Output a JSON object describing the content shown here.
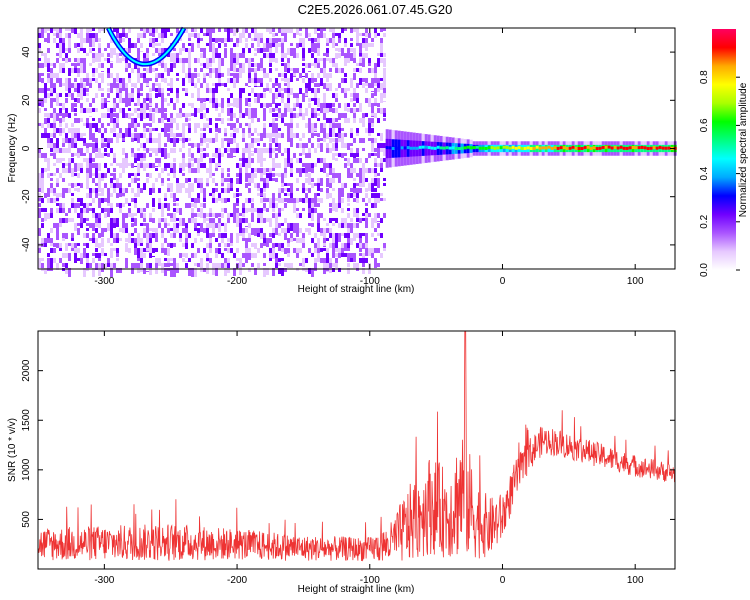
{
  "title": "C2E5.2026.061.07.45.G20",
  "chart_data": [
    {
      "type": "heatmap",
      "xlabel": "Height of straight line (km)",
      "ylabel": "Frequency (Hz)",
      "xlim": [
        -350,
        130
      ],
      "ylim": [
        -50,
        50
      ],
      "x_ticks": [
        -300,
        -200,
        -100,
        0,
        100
      ],
      "y_ticks": [
        -40,
        -20,
        0,
        20,
        40
      ],
      "colorbar": {
        "label": "Normalized spectral amplitude",
        "range": [
          0,
          1
        ],
        "ticks": [
          "0.0",
          "0.2",
          "0.4",
          "0.6",
          "0.8"
        ],
        "colors": [
          "#ffffff",
          "#e6c8ff",
          "#aa55ff",
          "#7000ff",
          "#0000ff",
          "#00aaff",
          "#00ffff",
          "#00ff80",
          "#00ff00",
          "#aaff00",
          "#ffff00",
          "#ffaa00",
          "#ff0000",
          "#ff0060"
        ]
      },
      "features": [
        {
          "name": "noise_region",
          "x_range": [
            -350,
            -88
          ],
          "amplitude": 0.1
        },
        {
          "name": "carrier_band",
          "x_range": [
            -88,
            130
          ],
          "center_freq": 0,
          "width_hz": 6,
          "amplitude_start": 0.3,
          "amplitude_end": 0.9
        }
      ]
    },
    {
      "type": "line",
      "xlabel": "Height of straight line (km)",
      "ylabel": "SNR (10 * v/v)",
      "xlim": [
        -350,
        130
      ],
      "ylim": [
        0,
        2400
      ],
      "x_ticks": [
        -300,
        -200,
        -100,
        0,
        100
      ],
      "y_ticks": [
        500,
        1000,
        1500,
        2000
      ],
      "color": "#ee3333",
      "envelope": {
        "x": [
          -350,
          -300,
          -250,
          -200,
          -150,
          -100,
          -85,
          -70,
          -55,
          -40,
          -30,
          -20,
          -10,
          0,
          10,
          20,
          30,
          40,
          60,
          80,
          100,
          130
        ],
        "mean": [
          250,
          260,
          270,
          250,
          210,
          200,
          250,
          450,
          650,
          550,
          800,
          500,
          420,
          520,
          900,
          1150,
          1300,
          1280,
          1200,
          1120,
          1040,
          960
        ],
        "spread": [
          170,
          180,
          190,
          160,
          130,
          120,
          200,
          400,
          500,
          450,
          700,
          400,
          300,
          250,
          200,
          170,
          150,
          140,
          130,
          120,
          110,
          100
        ]
      },
      "peak": {
        "x": -28,
        "y": 2400
      }
    }
  ]
}
